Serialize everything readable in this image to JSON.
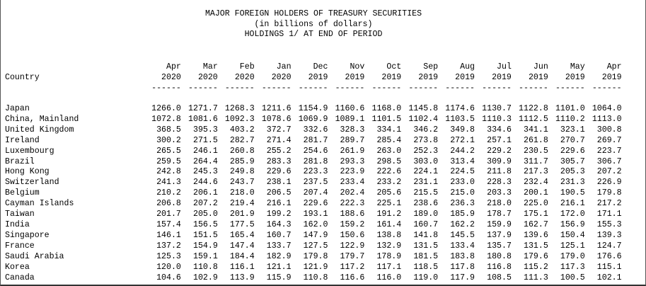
{
  "title_lines": [
    "MAJOR FOREIGN HOLDERS OF TREASURY SECURITIES",
    "(in billions of dollars)",
    "HOLDINGS 1/ AT END OF PERIOD"
  ],
  "country_header": "Country",
  "columns": [
    {
      "month": "Apr",
      "year": "2020"
    },
    {
      "month": "Mar",
      "year": "2020"
    },
    {
      "month": "Feb",
      "year": "2020"
    },
    {
      "month": "Jan",
      "year": "2020"
    },
    {
      "month": "Dec",
      "year": "2019"
    },
    {
      "month": "Nov",
      "year": "2019"
    },
    {
      "month": "Oct",
      "year": "2019"
    },
    {
      "month": "Sep",
      "year": "2019"
    },
    {
      "month": "Aug",
      "year": "2019"
    },
    {
      "month": "Jul",
      "year": "2019"
    },
    {
      "month": "Jun",
      "year": "2019"
    },
    {
      "month": "May",
      "year": "2019"
    },
    {
      "month": "Apr",
      "year": "2019"
    }
  ],
  "separator": "------",
  "rows": [
    {
      "country": "Japan",
      "values": [
        "1266.0",
        "1271.7",
        "1268.3",
        "1211.6",
        "1154.9",
        "1160.6",
        "1168.0",
        "1145.8",
        "1174.6",
        "1130.7",
        "1122.8",
        "1101.0",
        "1064.0"
      ]
    },
    {
      "country": "China, Mainland",
      "values": [
        "1072.8",
        "1081.6",
        "1092.3",
        "1078.6",
        "1069.9",
        "1089.1",
        "1101.5",
        "1102.4",
        "1103.5",
        "1110.3",
        "1112.5",
        "1110.2",
        "1113.0"
      ]
    },
    {
      "country": "United Kingdom",
      "values": [
        "368.5",
        "395.3",
        "403.2",
        "372.7",
        "332.6",
        "328.3",
        "334.1",
        "346.2",
        "349.8",
        "334.6",
        "341.1",
        "323.1",
        "300.8"
      ]
    },
    {
      "country": "Ireland",
      "values": [
        "300.2",
        "271.5",
        "282.7",
        "271.4",
        "281.7",
        "289.7",
        "285.4",
        "273.8",
        "272.1",
        "257.1",
        "261.8",
        "270.7",
        "269.7"
      ]
    },
    {
      "country": "Luxembourg",
      "values": [
        "265.5",
        "246.1",
        "260.8",
        "255.2",
        "254.6",
        "261.9",
        "263.0",
        "252.3",
        "244.2",
        "229.2",
        "230.5",
        "229.6",
        "223.7"
      ]
    },
    {
      "country": "Brazil",
      "values": [
        "259.5",
        "264.4",
        "285.9",
        "283.3",
        "281.8",
        "293.3",
        "298.5",
        "303.0",
        "313.4",
        "309.9",
        "311.7",
        "305.7",
        "306.7"
      ]
    },
    {
      "country": "Hong Kong",
      "values": [
        "242.8",
        "245.3",
        "249.8",
        "229.6",
        "223.3",
        "223.9",
        "222.6",
        "224.1",
        "224.5",
        "211.8",
        "217.3",
        "205.3",
        "207.2"
      ]
    },
    {
      "country": "Switzerland",
      "values": [
        "241.3",
        "244.6",
        "243.7",
        "238.1",
        "237.5",
        "233.4",
        "233.2",
        "231.1",
        "233.0",
        "228.3",
        "232.4",
        "231.3",
        "226.9"
      ]
    },
    {
      "country": "Belgium",
      "values": [
        "210.2",
        "206.1",
        "218.0",
        "206.5",
        "207.4",
        "202.4",
        "205.6",
        "215.5",
        "215.0",
        "203.3",
        "200.1",
        "190.5",
        "179.8"
      ]
    },
    {
      "country": "Cayman Islands",
      "values": [
        "206.8",
        "207.2",
        "219.4",
        "216.1",
        "229.6",
        "222.3",
        "225.1",
        "238.6",
        "236.3",
        "218.0",
        "225.0",
        "216.1",
        "217.2"
      ]
    },
    {
      "country": "Taiwan",
      "values": [
        "201.7",
        "205.0",
        "201.9",
        "199.2",
        "193.1",
        "188.6",
        "191.2",
        "189.0",
        "185.9",
        "178.7",
        "175.1",
        "172.0",
        "171.1"
      ]
    },
    {
      "country": "India",
      "values": [
        "157.4",
        "156.5",
        "177.5",
        "164.3",
        "162.0",
        "159.2",
        "161.4",
        "160.7",
        "162.2",
        "159.9",
        "162.7",
        "156.9",
        "155.3"
      ]
    },
    {
      "country": "Singapore",
      "values": [
        "146.1",
        "151.5",
        "165.4",
        "160.7",
        "147.9",
        "150.6",
        "138.8",
        "141.8",
        "145.5",
        "137.9",
        "139.6",
        "150.4",
        "139.3"
      ]
    },
    {
      "country": "France",
      "values": [
        "137.2",
        "154.9",
        "147.4",
        "133.7",
        "127.5",
        "122.9",
        "132.9",
        "131.5",
        "133.4",
        "135.7",
        "131.5",
        "125.1",
        "124.7"
      ]
    },
    {
      "country": "Saudi Arabia",
      "values": [
        "125.3",
        "159.1",
        "184.4",
        "182.9",
        "179.8",
        "179.7",
        "178.9",
        "181.5",
        "183.8",
        "180.8",
        "179.6",
        "179.0",
        "176.6"
      ]
    },
    {
      "country": "Korea",
      "values": [
        "120.0",
        "110.8",
        "116.1",
        "121.1",
        "121.9",
        "117.2",
        "117.1",
        "118.5",
        "117.8",
        "116.8",
        "115.2",
        "117.3",
        "115.1"
      ]
    },
    {
      "country": "Canada",
      "values": [
        "104.6",
        "102.9",
        "113.9",
        "115.9",
        "110.8",
        "116.6",
        "116.0",
        "119.0",
        "117.9",
        "108.5",
        "111.3",
        "100.5",
        "102.1"
      ]
    }
  ]
}
